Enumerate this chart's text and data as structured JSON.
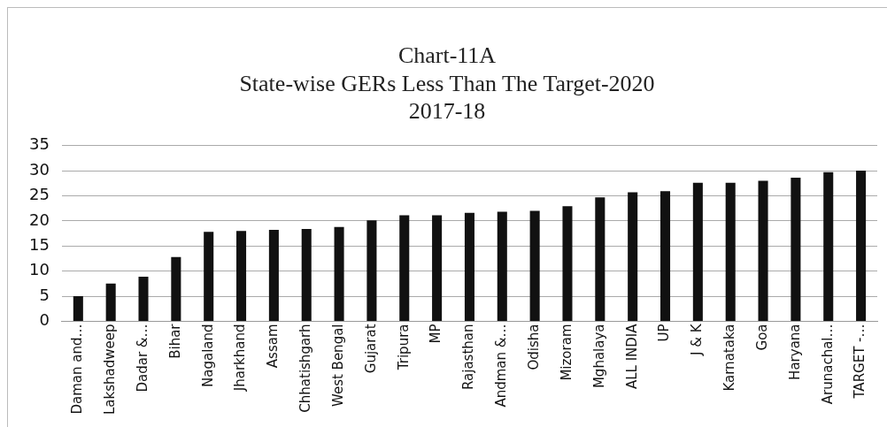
{
  "chart_data": {
    "type": "bar",
    "title": "Chart-11A",
    "subtitle": [
      "State-wise GERs Less Than The Target-2020",
      "2017-18"
    ],
    "categories": [
      "Daman and…",
      "Lakshadweep",
      "Dadar &…",
      "Bihar",
      "Nagaland",
      "Jharkhand",
      "Assam",
      "Chhatishgarh",
      "West Bengal",
      "Gujarat",
      "Tripura",
      "MP",
      "Rajasthan",
      "Andman &…",
      "Odisha",
      "Mizoram",
      "Mghalaya",
      "ALL INDIA",
      "UP",
      "J & K",
      "Karnataka",
      "Goa",
      "Haryana",
      "Arunachal…",
      "TARGET -…"
    ],
    "values": [
      5.0,
      7.5,
      8.9,
      12.8,
      17.8,
      18.0,
      18.2,
      18.4,
      18.8,
      20.1,
      21.1,
      21.1,
      21.6,
      21.8,
      22.0,
      22.9,
      24.7,
      25.7,
      25.9,
      27.6,
      27.6,
      28.0,
      28.6,
      29.7,
      30.0
    ],
    "color": "#111111",
    "ylim": [
      0,
      35
    ],
    "yticks": [
      0,
      5,
      10,
      15,
      20,
      25,
      30,
      35
    ],
    "grid": "y",
    "legend": false
  }
}
